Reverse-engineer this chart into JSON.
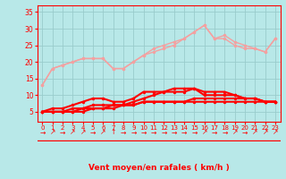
{
  "x": [
    0,
    1,
    2,
    3,
    4,
    5,
    6,
    7,
    8,
    9,
    10,
    11,
    12,
    13,
    14,
    15,
    16,
    17,
    18,
    19,
    20,
    21,
    22,
    23
  ],
  "line_pink1": [
    13,
    18,
    19,
    20,
    21,
    21,
    21,
    18,
    18,
    20,
    22,
    23,
    24,
    25,
    27,
    29,
    31,
    27,
    28,
    26,
    25,
    24,
    23,
    27
  ],
  "line_pink2": [
    13,
    18,
    19,
    20,
    21,
    21,
    21,
    18,
    18,
    20,
    22,
    24,
    25,
    26,
    27,
    29,
    31,
    27,
    27,
    25,
    24,
    24,
    23,
    27
  ],
  "line_red1": [
    5,
    6,
    6,
    7,
    8,
    9,
    9,
    8,
    8,
    9,
    11,
    11,
    11,
    11,
    11,
    12,
    10,
    10,
    10,
    10,
    9,
    9,
    8,
    8
  ],
  "line_red2": [
    5,
    5,
    5,
    6,
    6,
    7,
    7,
    7,
    7,
    8,
    9,
    10,
    11,
    12,
    12,
    12,
    11,
    11,
    11,
    10,
    9,
    9,
    8,
    8
  ],
  "line_red3": [
    5,
    5,
    5,
    5,
    6,
    6,
    6,
    7,
    7,
    7,
    8,
    8,
    8,
    8,
    8,
    9,
    9,
    9,
    9,
    9,
    9,
    9,
    8,
    8
  ],
  "line_red4": [
    5,
    5,
    5,
    5,
    5,
    6,
    6,
    6,
    7,
    7,
    8,
    8,
    8,
    8,
    8,
    8,
    8,
    8,
    8,
    8,
    8,
    8,
    8,
    8
  ],
  "color_pink": "#f4a0a0",
  "color_red": "#ff0000",
  "background_color": "#b8e8e8",
  "grid_color": "#99cccc",
  "xlabel": "Vent moyen/en rafales ( km/h )",
  "tick_color": "#ff0000",
  "ylim": [
    2,
    37
  ],
  "yticks": [
    5,
    10,
    15,
    20,
    25,
    30,
    35
  ],
  "xticks": [
    0,
    1,
    2,
    3,
    4,
    5,
    6,
    7,
    8,
    9,
    10,
    11,
    12,
    13,
    14,
    15,
    16,
    17,
    18,
    19,
    20,
    21,
    22,
    23
  ],
  "arrow_symbols": [
    "→",
    "↗",
    "→",
    "↗",
    "↗",
    "→",
    "↗",
    "↑",
    "→",
    "→",
    "→",
    "→",
    "→",
    "→",
    "→",
    "→",
    "↗",
    "→",
    "→",
    "↗",
    "→",
    "↗",
    "↗",
    "↗"
  ]
}
